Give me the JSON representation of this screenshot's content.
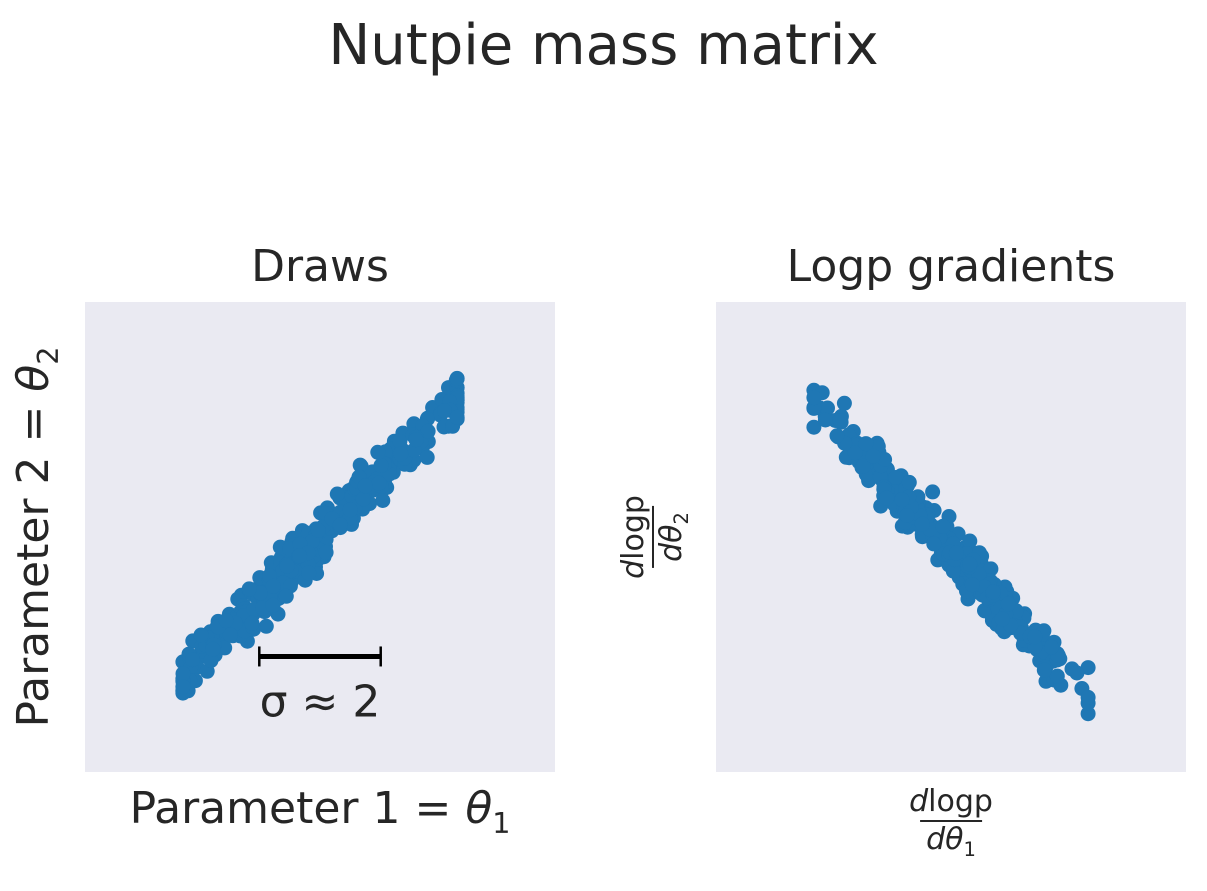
{
  "suptitle": "Nutpie mass matrix",
  "colors": {
    "points": "#1f77b4",
    "panel_bg": "#eaeaf2",
    "text": "#262626",
    "annotation": "#000000"
  },
  "chart_data": [
    {
      "type": "scatter",
      "title": "Draws",
      "xlabel": {
        "text": "Parameter 1 = ",
        "symbol": "θ",
        "sub": "1"
      },
      "ylabel": {
        "text": "Parameter 2 = ",
        "symbol": "θ",
        "sub": "2"
      },
      "xlim": [
        -6,
        6
      ],
      "ylim": [
        -6,
        6
      ],
      "grid": false,
      "axis_ticks": false,
      "trend": {
        "slope": 1.0,
        "intercept": 0.0,
        "x_mean": 0.0,
        "x_sd": 1.9,
        "noise_sd": 0.32,
        "n": 400,
        "seed": 7
      },
      "annotation": {
        "label": "σ ≈ 2",
        "sigma": 2,
        "x_start": -1.55,
        "x_end": 1.55,
        "y": -3.05
      }
    },
    {
      "type": "scatter",
      "title": "Logp gradients",
      "xlabel": {
        "num": "logp",
        "den_symbol": "θ",
        "den_sub": "1"
      },
      "ylabel": {
        "num": "logp",
        "den_symbol": "θ",
        "den_sub": "2"
      },
      "xlim": [
        -6,
        6
      ],
      "ylim": [
        -6,
        6
      ],
      "grid": false,
      "axis_ticks": false,
      "trend": {
        "slope": -1.08,
        "intercept": -0.35,
        "x_mean": 0.0,
        "x_sd": 1.6,
        "noise_sd": 0.3,
        "n": 400,
        "seed": 13
      }
    }
  ]
}
